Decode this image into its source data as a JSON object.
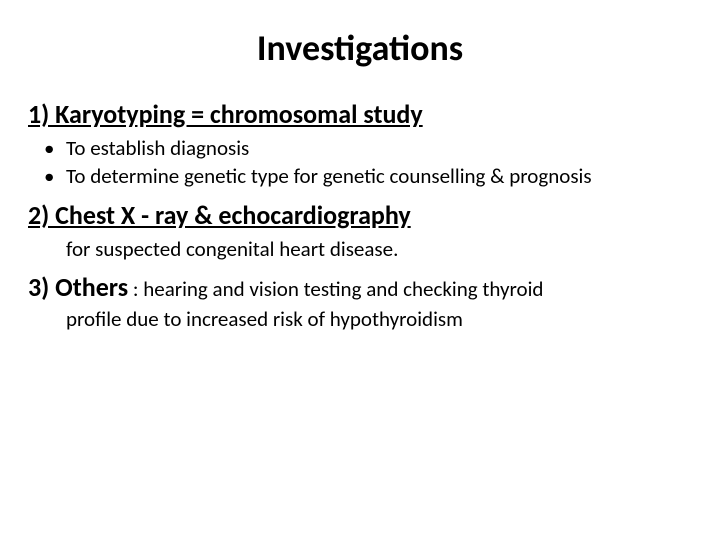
{
  "title": "Investigations",
  "section1": {
    "heading": "1) Karyotyping = chromosomal study",
    "bullets": [
      "To establish diagnosis",
      "To determine genetic type for genetic counselling & prognosis"
    ]
  },
  "section2": {
    "heading": "2) Chest X - ray & echocardiography",
    "text": "for suspected congenital heart disease."
  },
  "section3": {
    "heading": "3) Others",
    "inline": " : hearing and vision testing and checking thyroid",
    "cont": "profile due to increased risk of hypothyroidism"
  },
  "style": {
    "title_fontsize": 36,
    "heading_fontsize": 26,
    "body_fontsize": 21,
    "text_color": "#000000",
    "background_color": "#ffffff",
    "font_family": "Calibri"
  }
}
